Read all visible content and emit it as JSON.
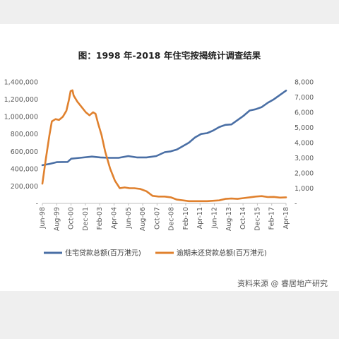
{
  "title": "图：1998 年-2018 年住宅按揭统计调查结果",
  "watermark": "资料来源 @ 睿居地产研究",
  "chart_data": {
    "type": "line",
    "title": "图：1998 年-2018 年住宅按揭统计调查结果",
    "x_tick_labels": [
      "Jun-98",
      "Aug-99",
      "Oct-00",
      "Dec-01",
      "Feb-03",
      "Apr-04",
      "Jun-05",
      "Aug-06",
      "Oct-07",
      "Dec-08",
      "Feb-10",
      "Apr-11",
      "Jun-12",
      "Aug-13",
      "Oct-14",
      "Dec-15",
      "Feb-17",
      "Apr-18"
    ],
    "x_range": [
      1998.42,
      2018.5
    ],
    "y_left": {
      "range": [
        0,
        1400000
      ],
      "ticks": [
        "-",
        "200,000",
        "400,000",
        "600,000",
        "800,000",
        "1,000,000",
        "1,200,000",
        "1,400,000"
      ]
    },
    "y_right": {
      "range": [
        0,
        8000
      ],
      "ticks": [
        "-",
        "1,000",
        "2,000",
        "3,000",
        "4,000",
        "5,000",
        "6,000",
        "7,000",
        "8,000"
      ]
    },
    "series": [
      {
        "name": "住宅贷款总额(百万港元)",
        "axis": "left",
        "color": "#4a6fa5",
        "points": [
          [
            1998.42,
            440000
          ],
          [
            1999.0,
            455000
          ],
          [
            1999.6,
            475000
          ],
          [
            2000.5,
            478000
          ],
          [
            2000.8,
            515000
          ],
          [
            2001.5,
            525000
          ],
          [
            2002.5,
            540000
          ],
          [
            2003.2,
            530000
          ],
          [
            2004.0,
            525000
          ],
          [
            2004.7,
            525000
          ],
          [
            2005.5,
            545000
          ],
          [
            2006.2,
            530000
          ],
          [
            2007.0,
            530000
          ],
          [
            2007.8,
            545000
          ],
          [
            2008.5,
            590000
          ],
          [
            2009.0,
            600000
          ],
          [
            2009.5,
            620000
          ],
          [
            2010.0,
            660000
          ],
          [
            2010.5,
            700000
          ],
          [
            2011.0,
            760000
          ],
          [
            2011.5,
            800000
          ],
          [
            2012.0,
            810000
          ],
          [
            2012.5,
            840000
          ],
          [
            2013.0,
            880000
          ],
          [
            2013.5,
            905000
          ],
          [
            2014.0,
            910000
          ],
          [
            2014.5,
            960000
          ],
          [
            2015.0,
            1010000
          ],
          [
            2015.5,
            1070000
          ],
          [
            2016.0,
            1085000
          ],
          [
            2016.5,
            1110000
          ],
          [
            2017.0,
            1160000
          ],
          [
            2017.5,
            1200000
          ],
          [
            2018.0,
            1250000
          ],
          [
            2018.5,
            1300000
          ]
        ]
      },
      {
        "name": "逾期未还贷款总额(百万港元)",
        "axis": "right",
        "color": "#e0812e",
        "points": [
          [
            1998.42,
            1300
          ],
          [
            1998.7,
            2900
          ],
          [
            1999.0,
            4500
          ],
          [
            1999.2,
            5400
          ],
          [
            1999.5,
            5550
          ],
          [
            1999.8,
            5500
          ],
          [
            2000.1,
            5700
          ],
          [
            2000.4,
            6100
          ],
          [
            2000.6,
            6800
          ],
          [
            2000.75,
            7400
          ],
          [
            2000.9,
            7450
          ],
          [
            2001.0,
            7100
          ],
          [
            2001.3,
            6700
          ],
          [
            2001.7,
            6300
          ],
          [
            2002.0,
            6000
          ],
          [
            2002.3,
            5800
          ],
          [
            2002.6,
            6000
          ],
          [
            2002.8,
            5900
          ],
          [
            2003.0,
            5300
          ],
          [
            2003.3,
            4500
          ],
          [
            2003.6,
            3400
          ],
          [
            2004.0,
            2300
          ],
          [
            2004.4,
            1500
          ],
          [
            2004.8,
            1000
          ],
          [
            2005.2,
            1050
          ],
          [
            2005.6,
            1000
          ],
          [
            2006.0,
            1000
          ],
          [
            2006.5,
            950
          ],
          [
            2007.0,
            800
          ],
          [
            2007.5,
            500
          ],
          [
            2008.0,
            450
          ],
          [
            2008.5,
            450
          ],
          [
            2009.0,
            400
          ],
          [
            2009.5,
            250
          ],
          [
            2010.0,
            200
          ],
          [
            2010.5,
            150
          ],
          [
            2011.0,
            150
          ],
          [
            2012.0,
            150
          ],
          [
            2013.0,
            200
          ],
          [
            2013.5,
            300
          ],
          [
            2014.0,
            320
          ],
          [
            2014.5,
            300
          ],
          [
            2015.0,
            350
          ],
          [
            2015.5,
            400
          ],
          [
            2016.0,
            450
          ],
          [
            2016.5,
            480
          ],
          [
            2017.0,
            420
          ],
          [
            2017.5,
            430
          ],
          [
            2018.0,
            380
          ],
          [
            2018.5,
            400
          ]
        ]
      }
    ],
    "legend_position": "bottom",
    "grid": false
  }
}
